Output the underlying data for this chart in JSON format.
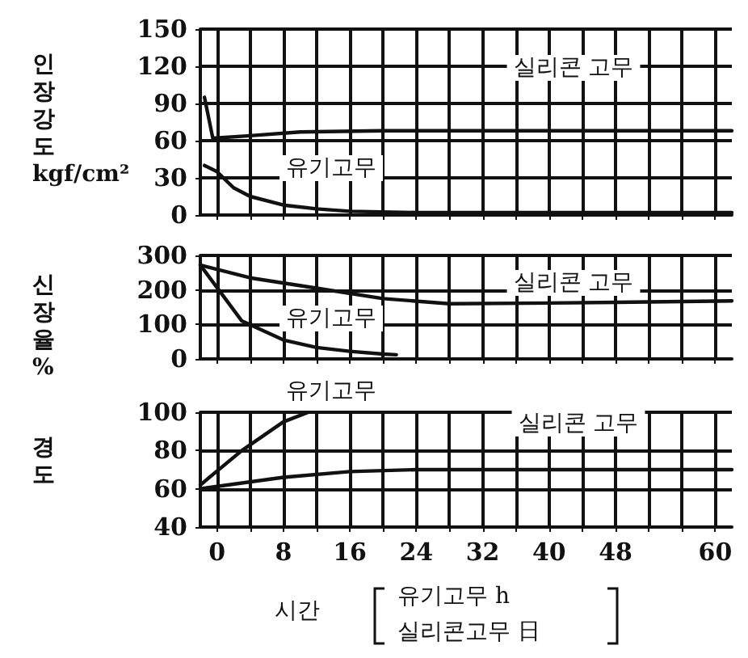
{
  "chart_data": [
    {
      "type": "line",
      "ylabel": "인장강도 kgf/cm²",
      "xlim": [
        -2,
        62
      ],
      "xticks": [
        0,
        {
          "value": 4,
          "label": null
        },
        8,
        {
          "value": 12,
          "label": null
        },
        16,
        {
          "value": 20,
          "label": null
        },
        24,
        {
          "value": 28,
          "label": null
        },
        32,
        {
          "value": 36,
          "label": null
        },
        40,
        {
          "value": 44,
          "label": null
        },
        48,
        {
          "value": 52,
          "label": null
        },
        {
          "value": 56,
          "label": null
        },
        60
      ],
      "ylim": [
        0,
        150
      ],
      "yticks": [
        0,
        30,
        60,
        90,
        120,
        150
      ],
      "grid": true,
      "tick_labels": "y",
      "line_style": "solid",
      "marker": "none",
      "series": [
        {
          "name": "실리콘 고무",
          "color": "#111111",
          "x": [
            -1.5,
            -0.5,
            4,
            10,
            20,
            40,
            62
          ],
          "values": [
            95,
            62,
            64,
            67,
            68,
            68,
            68
          ]
        },
        {
          "name": "유기고무",
          "color": "#111111",
          "x": [
            -1.5,
            0,
            2,
            4,
            8,
            12,
            16,
            24,
            40,
            62
          ],
          "values": [
            40,
            35,
            22,
            15,
            8,
            5,
            3,
            2,
            2,
            2
          ]
        }
      ]
    },
    {
      "type": "line",
      "xlim": [
        -2,
        62
      ],
      "xticks": [
        0,
        {
          "value": 4,
          "label": null
        },
        8,
        {
          "value": 12,
          "label": null
        },
        16,
        {
          "value": 20,
          "label": null
        },
        24,
        {
          "value": 28,
          "label": null
        },
        32,
        {
          "value": 36,
          "label": null
        },
        40,
        {
          "value": 44,
          "label": null
        },
        48,
        {
          "value": 52,
          "label": null
        },
        {
          "value": 56,
          "label": null
        },
        60
      ],
      "ylabel": "신장율 %",
      "ylim": [
        0,
        300
      ],
      "yticks": [
        0,
        100,
        200,
        300
      ],
      "grid": true,
      "tick_labels": "y",
      "line_style": "solid",
      "marker": "none",
      "series": [
        {
          "name": "실리콘 고무",
          "color": "#111111",
          "x": [
            -2,
            4,
            12,
            20,
            28,
            40,
            62
          ],
          "values": [
            272,
            235,
            205,
            175,
            160,
            162,
            168
          ]
        },
        {
          "name": "유기고무",
          "color": "#111111",
          "x": [
            -2,
            3,
            8,
            12,
            16,
            20,
            21.6
          ],
          "values": [
            272,
            110,
            55,
            33,
            22,
            14,
            12
          ]
        }
      ]
    },
    {
      "type": "line",
      "xlabel": "시간",
      "ylabel": "경도",
      "xlim": [
        -2,
        62
      ],
      "xticks": [
        0,
        {
          "value": 4,
          "label": null
        },
        8,
        {
          "value": 12,
          "label": null
        },
        16,
        {
          "value": 20,
          "label": null
        },
        24,
        {
          "value": 28,
          "label": null
        },
        32,
        {
          "value": 36,
          "label": null
        },
        40,
        {
          "value": 44,
          "label": null
        },
        48,
        {
          "value": 52,
          "label": null
        },
        {
          "value": 56,
          "label": null
        },
        60
      ],
      "ylim": [
        40,
        100
      ],
      "yticks": [
        40,
        60,
        80,
        100
      ],
      "grid": true,
      "line_style": "solid",
      "marker": "none",
      "series": [
        {
          "name": "실리콘 고무",
          "color": "#111111",
          "x": [
            -2,
            8,
            16,
            24,
            40,
            62
          ],
          "values": [
            60,
            66,
            69,
            70,
            70,
            70
          ]
        },
        {
          "name": "유기고무",
          "color": "#111111",
          "x": [
            -2,
            3,
            8,
            11
          ],
          "values": [
            62,
            80,
            95,
            100
          ]
        }
      ],
      "annotations": [
        "유기고무 h",
        "실리콘고무 日"
      ]
    }
  ]
}
